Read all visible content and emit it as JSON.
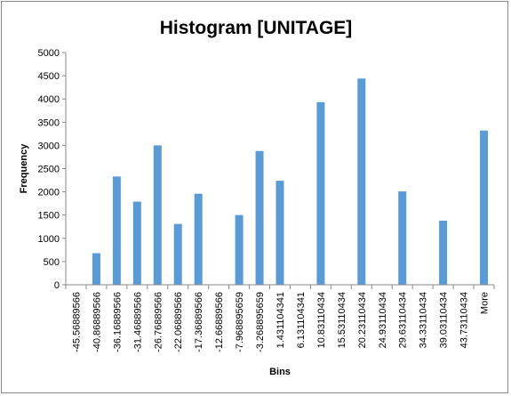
{
  "chart_data": {
    "type": "bar",
    "title": "Histogram [UNITAGE]",
    "xlabel": "Bins",
    "ylabel": "Frequency",
    "ylim": [
      0,
      5000
    ],
    "yticks": [
      "0",
      "500",
      "1000",
      "1500",
      "2000",
      "2500",
      "3000",
      "3500",
      "4000",
      "4500",
      "5000"
    ],
    "categories": [
      "-45.56889566",
      "-40.86889566",
      "-36.16889566",
      "-31.46889566",
      "-26.76889566",
      "-22.06889566",
      "-17.36889566",
      "-12.66889566",
      "-7.968895659",
      "-3.268895659",
      "1.431104341",
      "6.131104341",
      "10.83110434",
      "15.53110434",
      "20.23110434",
      "24.93110434",
      "29.63110434",
      "34.33110434",
      "39.03110434",
      "43.73110434",
      "More"
    ],
    "values": [
      0,
      680,
      2330,
      1790,
      3000,
      1310,
      1960,
      0,
      1500,
      2880,
      2240,
      0,
      3930,
      0,
      4440,
      0,
      2010,
      0,
      1380,
      0,
      3320
    ],
    "bar_color": "#5b9bd5",
    "grid": false,
    "legend": "none"
  }
}
